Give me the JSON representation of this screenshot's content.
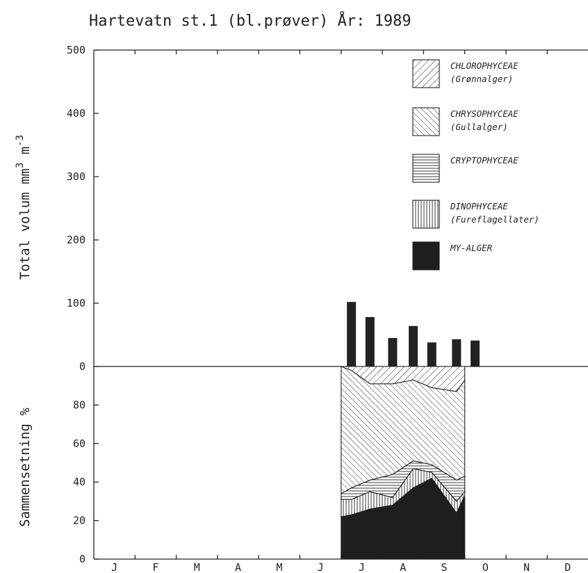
{
  "chart_data": [
    {
      "type": "bar",
      "title": "Hartevatn st.1 (bl.prøver)   År: 1989",
      "ylabel": "Total volum mm",
      "ylabel_sup": "3",
      "ylabel_mid": " m",
      "ylabel_sup2": "-3",
      "ylim": [
        0,
        500
      ],
      "yticks": [
        "500",
        "400",
        "300",
        "200",
        "100",
        "0"
      ],
      "x_month": [
        6.25,
        6.7,
        7.25,
        7.75,
        8.2,
        8.8,
        9.25
      ],
      "values": [
        102,
        78,
        45,
        64,
        38,
        43,
        41
      ]
    },
    {
      "type": "area",
      "ylabel": "Sammensetning %",
      "ylim": [
        0,
        100
      ],
      "yticks": [
        "80",
        "60",
        "40",
        "20",
        "0"
      ],
      "x_month": [
        6.0,
        6.25,
        6.7,
        7.25,
        7.75,
        8.2,
        8.8,
        9.0
      ],
      "series": [
        {
          "name": "MY-ALGER",
          "values": [
            22,
            23,
            26,
            28,
            37,
            42,
            24,
            33
          ]
        },
        {
          "name": "DINOPHYCEAE",
          "values": [
            9,
            8,
            9,
            4,
            10,
            3,
            6,
            2
          ]
        },
        {
          "name": "CRYPTOPHYCEAE",
          "values": [
            3,
            6,
            6,
            12,
            4,
            4,
            11,
            8
          ]
        },
        {
          "name": "CHRYSOPHYCEAE",
          "values": [
            66,
            61,
            50,
            47,
            42,
            40,
            46,
            50
          ]
        },
        {
          "name": "CHLOROPHYCEAE",
          "values": [
            0,
            2,
            9,
            9,
            7,
            11,
            13,
            7
          ]
        }
      ]
    }
  ],
  "months": [
    "J",
    "F",
    "M",
    "A",
    "M",
    "J",
    "J",
    "A",
    "S",
    "O",
    "N",
    "D"
  ],
  "legend": [
    {
      "pattern": "hatch-chloro",
      "name": "CHLOROPHYCEAE",
      "sub": "(Grønnalger)"
    },
    {
      "pattern": "hatch-chryso",
      "name": "CHRYSOPHYCEAE",
      "sub": "(Gullalger)"
    },
    {
      "pattern": "hatch-crypto",
      "name": "CRYPTOPHYCEAE",
      "sub": ""
    },
    {
      "pattern": "hatch-dino",
      "name": "DINOPHYCEAE",
      "sub": "(Fureflagellater)"
    },
    {
      "pattern": "solid-my",
      "name": "MY-ALGER",
      "sub": ""
    }
  ],
  "colors": {
    "ink": "#222222",
    "paper": "#ffffff"
  }
}
